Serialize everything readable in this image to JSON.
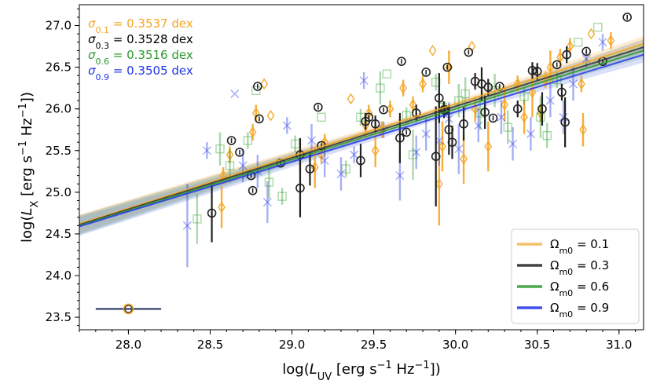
{
  "chart_data": {
    "type": "scatter",
    "xlabel": "log(L_UV [erg s^-1 Hz^-1])",
    "ylabel": "log(L_X [erg s^-1 Hz^-1])",
    "xlim": [
      27.7,
      31.15
    ],
    "ylim": [
      23.35,
      27.25
    ],
    "xticks": [
      "28.0",
      "28.5",
      "29.0",
      "29.5",
      "30.0",
      "30.5",
      "31.0"
    ],
    "yticks": [
      "23.5",
      "24.0",
      "24.5",
      "25.0",
      "25.5",
      "26.0",
      "26.5",
      "27.0"
    ],
    "colors": {
      "0.1": "#f5a623",
      "0.3": "#222222",
      "0.6": "#2e9a2e",
      "0.9": "#2438e8"
    },
    "scatter_annotations": [
      {
        "prefix": "σ",
        "sub": "0.1",
        "text": " = 0.3537 dex",
        "color": "#f5a623"
      },
      {
        "prefix": "σ",
        "sub": "0.3",
        "text": " = 0.3528 dex",
        "color": "#000000"
      },
      {
        "prefix": "σ",
        "sub": "0.6",
        "text": " = 0.3516 dex",
        "color": "#2e9a2e"
      },
      {
        "prefix": "σ",
        "sub": "0.9",
        "text": " = 0.3505 dex",
        "color": "#2438e8"
      }
    ],
    "legend": {
      "position": "lower-right",
      "entries": [
        {
          "prefix": "Ω",
          "sub": "m0",
          "text": " = 0.1",
          "color": "#f5c06a"
        },
        {
          "prefix": "Ω",
          "sub": "m0",
          "text": " = 0.3",
          "color": "#444444"
        },
        {
          "prefix": "Ω",
          "sub": "m0",
          "text": " = 0.6",
          "color": "#4aa84a"
        },
        {
          "prefix": "Ω",
          "sub": "m0",
          "text": " = 0.9",
          "color": "#4050f0"
        }
      ]
    },
    "fit_lines": [
      {
        "name": "Omega_m0 = 0.1",
        "x": [
          27.7,
          31.15
        ],
        "y": [
          24.62,
          26.78
        ],
        "color": "#f5a623",
        "band_color": "#f5c06a"
      },
      {
        "name": "Omega_m0 = 0.3",
        "x": [
          27.7,
          31.15
        ],
        "y": [
          24.61,
          26.74
        ],
        "color": "#333333",
        "band_color": "#888888"
      },
      {
        "name": "Omega_m0 = 0.6",
        "x": [
          27.7,
          31.15
        ],
        "y": [
          24.6,
          26.7
        ],
        "color": "#2e9a2e",
        "band_color": "#88c888"
      },
      {
        "name": "Omega_m0 = 0.9",
        "x": [
          27.7,
          31.15
        ],
        "y": [
          24.59,
          26.65
        ],
        "color": "#2438e8",
        "band_color": "#8898f0"
      }
    ],
    "typical_error_point": {
      "x": 28.0,
      "y": 23.6,
      "xerr": 0.2
    },
    "series": [
      {
        "name": "Omega_m0 = 0.1",
        "marker": "diamond",
        "points": [
          [
            28.57,
            24.82,
            0.25
          ],
          [
            28.58,
            25.2,
            0.1
          ],
          [
            28.62,
            25.45,
            0.1
          ],
          [
            28.76,
            25.72,
            0.1
          ],
          [
            28.78,
            25.95,
            0.1
          ],
          [
            28.83,
            26.3,
            0.05
          ],
          [
            28.87,
            25.92,
            0.05
          ],
          [
            29.14,
            25.3,
            0.25
          ],
          [
            29.18,
            25.45,
            0.1
          ],
          [
            29.2,
            25.6,
            0.1
          ],
          [
            29.36,
            26.12,
            0.05
          ],
          [
            29.45,
            25.8,
            0.15
          ],
          [
            29.47,
            25.95,
            0.1
          ],
          [
            29.51,
            25.5,
            0.2
          ],
          [
            29.55,
            25.75,
            0.1
          ],
          [
            29.6,
            26.0,
            0.1
          ],
          [
            29.68,
            26.25,
            0.1
          ],
          [
            29.74,
            26.05,
            0.1
          ],
          [
            29.8,
            26.3,
            0.1
          ],
          [
            29.86,
            26.7,
            0.05
          ],
          [
            29.9,
            25.1,
            0.5
          ],
          [
            29.92,
            25.55,
            0.3
          ],
          [
            29.96,
            26.5,
            0.2
          ],
          [
            30.05,
            25.4,
            0.3
          ],
          [
            30.1,
            26.75,
            0.05
          ],
          [
            30.12,
            26.0,
            0.15
          ],
          [
            30.2,
            25.55,
            0.3
          ],
          [
            30.3,
            26.05,
            0.2
          ],
          [
            30.38,
            26.3,
            0.1
          ],
          [
            30.42,
            25.9,
            0.2
          ],
          [
            30.47,
            26.2,
            0.3
          ],
          [
            30.52,
            25.95,
            0.1
          ],
          [
            30.55,
            26.35,
            0.1
          ],
          [
            30.58,
            26.5,
            0.2
          ],
          [
            30.64,
            26.62,
            0.1
          ],
          [
            30.7,
            26.75,
            0.1
          ],
          [
            30.77,
            26.3,
            0.1
          ],
          [
            30.78,
            25.75,
            0.2
          ],
          [
            30.83,
            26.9,
            0.05
          ],
          [
            30.95,
            26.82,
            0.1
          ]
        ]
      },
      {
        "name": "Omega_m0 = 0.6",
        "marker": "square",
        "points": [
          [
            28.42,
            24.68,
            0.3
          ],
          [
            28.56,
            25.52,
            0.2
          ],
          [
            28.62,
            25.32,
            0.2
          ],
          [
            28.73,
            25.62,
            0.1
          ],
          [
            28.78,
            26.22,
            0.05
          ],
          [
            28.86,
            25.12,
            0.2
          ],
          [
            28.94,
            24.95,
            0.1
          ],
          [
            29.02,
            25.58,
            0.1
          ],
          [
            29.18,
            25.9,
            0.05
          ],
          [
            29.33,
            25.28,
            0.1
          ],
          [
            29.42,
            25.9,
            0.1
          ],
          [
            29.54,
            26.25,
            0.2
          ],
          [
            29.58,
            26.42,
            0.05
          ],
          [
            29.7,
            25.92,
            0.1
          ],
          [
            29.74,
            25.45,
            0.3
          ],
          [
            29.88,
            26.32,
            0.1
          ],
          [
            29.92,
            26.02,
            0.1
          ],
          [
            30.02,
            26.1,
            0.2
          ],
          [
            30.06,
            26.18,
            0.2
          ],
          [
            30.15,
            25.95,
            0.2
          ],
          [
            30.24,
            26.22,
            0.2
          ],
          [
            30.32,
            25.78,
            0.2
          ],
          [
            30.42,
            26.15,
            0.1
          ],
          [
            30.52,
            25.9,
            0.25
          ],
          [
            30.56,
            25.68,
            0.15
          ],
          [
            30.62,
            26.35,
            0.1
          ],
          [
            30.75,
            26.8,
            0.05
          ],
          [
            30.87,
            26.98,
            0.05
          ]
        ]
      },
      {
        "name": "Omega_m0 = 0.9",
        "marker": "x",
        "points": [
          [
            28.36,
            24.6,
            0.5
          ],
          [
            28.48,
            25.5,
            0.1
          ],
          [
            28.65,
            26.18,
            0.05
          ],
          [
            28.7,
            25.32,
            0.2
          ],
          [
            28.79,
            25.25,
            0.2
          ],
          [
            28.85,
            24.88,
            0.25
          ],
          [
            28.97,
            25.8,
            0.1
          ],
          [
            29.12,
            25.62,
            0.2
          ],
          [
            29.2,
            25.38,
            0.2
          ],
          [
            29.3,
            25.22,
            0.2
          ],
          [
            29.38,
            25.45,
            0.1
          ],
          [
            29.44,
            26.34,
            0.1
          ],
          [
            29.56,
            25.75,
            0.1
          ],
          [
            29.66,
            25.2,
            0.3
          ],
          [
            29.76,
            25.48,
            0.2
          ],
          [
            29.82,
            25.7,
            0.2
          ],
          [
            29.9,
            25.62,
            0.3
          ],
          [
            29.96,
            25.88,
            0.2
          ],
          [
            30.02,
            25.52,
            0.3
          ],
          [
            30.14,
            25.8,
            0.2
          ],
          [
            30.28,
            25.9,
            0.2
          ],
          [
            30.35,
            25.58,
            0.2
          ],
          [
            30.46,
            25.7,
            0.2
          ],
          [
            30.58,
            26.1,
            0.2
          ],
          [
            30.66,
            25.9,
            0.2
          ],
          [
            30.72,
            26.3,
            0.2
          ],
          [
            30.8,
            26.6,
            0.1
          ],
          [
            30.9,
            26.8,
            0.1
          ]
        ]
      },
      {
        "name": "Omega_m0 = 0.3",
        "marker": "circle",
        "points": [
          [
            28.51,
            24.75,
            0.35
          ],
          [
            28.63,
            25.62,
            0.05
          ],
          [
            28.68,
            25.48,
            0.05
          ],
          [
            28.75,
            25.2,
            0.05
          ],
          [
            28.76,
            25.02,
            0.05
          ],
          [
            28.79,
            26.27,
            0.05
          ],
          [
            28.8,
            25.88,
            0.05
          ],
          [
            28.93,
            25.35,
            0.05
          ],
          [
            29.05,
            25.05,
            0.35
          ],
          [
            29.05,
            25.45,
            0.2
          ],
          [
            29.11,
            25.28,
            0.2
          ],
          [
            29.16,
            26.02,
            0.05
          ],
          [
            29.18,
            25.56,
            0.05
          ],
          [
            29.42,
            25.38,
            0.2
          ],
          [
            29.45,
            25.85,
            0.1
          ],
          [
            29.47,
            25.9,
            0.05
          ],
          [
            29.51,
            25.82,
            0.1
          ],
          [
            29.56,
            25.99,
            0.05
          ],
          [
            29.66,
            25.65,
            0.3
          ],
          [
            29.67,
            26.57,
            0.05
          ],
          [
            29.7,
            25.72,
            0.05
          ],
          [
            29.76,
            25.95,
            0.1
          ],
          [
            29.82,
            26.44,
            0.05
          ],
          [
            29.88,
            25.43,
            0.6
          ],
          [
            29.9,
            26.13,
            0.3
          ],
          [
            29.93,
            25.99,
            0.1
          ],
          [
            29.94,
            25.99,
            0.05
          ],
          [
            29.95,
            26.5,
            0.05
          ],
          [
            29.96,
            25.75,
            0.3
          ],
          [
            29.98,
            25.6,
            0.2
          ],
          [
            30.05,
            25.82,
            0.2
          ],
          [
            30.08,
            26.68,
            0.05
          ],
          [
            30.12,
            26.33,
            0.1
          ],
          [
            30.16,
            26.3,
            0.2
          ],
          [
            30.18,
            25.96,
            0.2
          ],
          [
            30.2,
            26.26,
            0.1
          ],
          [
            30.23,
            25.89,
            0.05
          ],
          [
            30.27,
            26.27,
            0.05
          ],
          [
            30.38,
            26.0,
            0.1
          ],
          [
            30.47,
            26.46,
            0.1
          ],
          [
            30.5,
            26.45,
            0.1
          ],
          [
            30.53,
            26.0,
            0.2
          ],
          [
            30.62,
            26.53,
            0.05
          ],
          [
            30.65,
            26.2,
            0.1
          ],
          [
            30.67,
            25.84,
            0.3
          ],
          [
            30.68,
            26.65,
            0.1
          ],
          [
            30.8,
            26.69,
            0.05
          ],
          [
            30.9,
            26.57,
            0.05
          ],
          [
            31.05,
            27.1,
            0.05
          ]
        ]
      }
    ]
  }
}
